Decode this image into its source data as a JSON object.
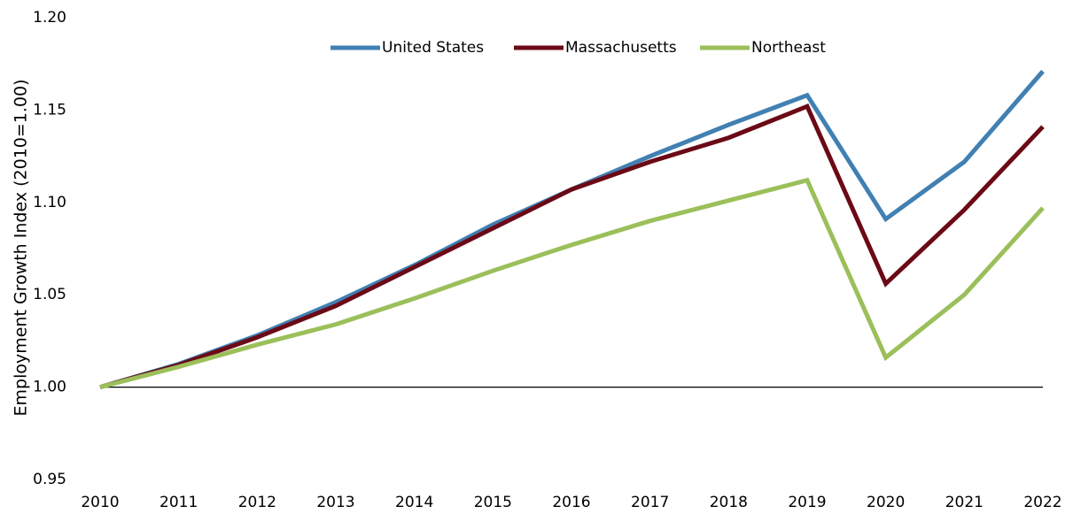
{
  "chart_data": {
    "type": "line",
    "y_label": "Employment Growth Index (2010=1.00)",
    "x": [
      2010,
      2011,
      2012,
      2013,
      2014,
      2015,
      2016,
      2017,
      2018,
      2019,
      2020,
      2021,
      2022
    ],
    "xlim": [
      2010,
      2022
    ],
    "ylim": [
      0.95,
      1.2
    ],
    "yticks": [
      0.95,
      {
        "value": 1.0,
        "label": "1.00"
      },
      1.05,
      {
        "value": 1.1,
        "label": "1.10"
      },
      1.15,
      {
        "value": 1.2,
        "label": "1.20"
      }
    ],
    "x_axis_at": 1.0,
    "grid": false,
    "legend": "top",
    "series": [
      {
        "name": "United States",
        "color": "#4180b2",
        "values": [
          1.0,
          1.0125,
          1.028,
          1.046,
          1.066,
          1.088,
          1.107,
          1.125,
          1.142,
          1.158,
          1.091,
          1.122,
          1.171
        ]
      },
      {
        "name": "Massachusetts",
        "color": "#6b0a16",
        "values": [
          1.0,
          1.012,
          1.027,
          1.044,
          1.065,
          1.086,
          1.107,
          1.122,
          1.135,
          1.152,
          1.056,
          1.096,
          1.141
        ]
      },
      {
        "name": "Northeast",
        "color": "#9bbf5a",
        "values": [
          1.0,
          1.011,
          1.023,
          1.034,
          1.048,
          1.063,
          1.077,
          1.09,
          1.101,
          1.112,
          1.016,
          1.05,
          1.097
        ]
      }
    ]
  }
}
